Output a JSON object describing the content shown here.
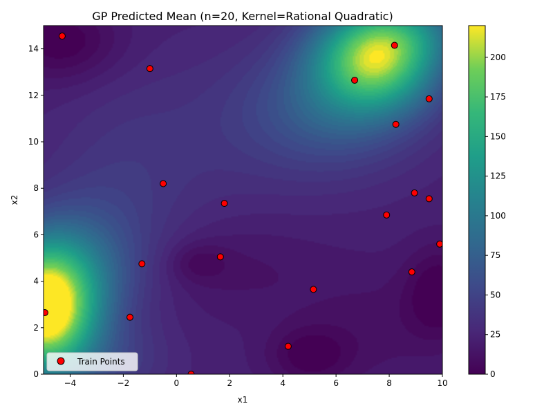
{
  "chart_data": {
    "type": "heatmap",
    "title": "GP Predicted Mean (n=20, Kernel=Rational Quadratic)",
    "xlabel": "x1",
    "ylabel": "x2",
    "xlim": [
      -5,
      10
    ],
    "ylim": [
      0,
      15
    ],
    "x_ticks": [
      -4,
      -2,
      0,
      2,
      4,
      6,
      8,
      10
    ],
    "y_ticks": [
      0,
      2,
      4,
      6,
      8,
      10,
      12,
      14
    ],
    "colorbar": {
      "colormap": "viridis",
      "range": [
        0,
        220
      ],
      "ticks": [
        0,
        25,
        50,
        75,
        100,
        125,
        150,
        175,
        200
      ]
    },
    "grid": false,
    "legend": {
      "placement": "lower-left",
      "entries": [
        "Train Points"
      ]
    },
    "series": [
      {
        "name": "Train Points",
        "marker_color": "#ff0000",
        "edge_color": "#000000",
        "points": [
          [
            -4.3,
            14.55
          ],
          [
            -1.0,
            13.15
          ],
          [
            8.2,
            14.15
          ],
          [
            6.7,
            12.65
          ],
          [
            9.5,
            11.85
          ],
          [
            8.25,
            10.75
          ],
          [
            -0.5,
            8.2
          ],
          [
            1.8,
            7.35
          ],
          [
            8.95,
            7.8
          ],
          [
            9.5,
            7.55
          ],
          [
            7.9,
            6.85
          ],
          [
            9.9,
            5.6
          ],
          [
            -1.3,
            4.75
          ],
          [
            1.65,
            5.05
          ],
          [
            8.85,
            4.4
          ],
          [
            5.15,
            3.65
          ],
          [
            -4.95,
            2.65
          ],
          [
            -1.75,
            2.45
          ],
          [
            4.2,
            1.2
          ],
          [
            0.55,
            0.0
          ]
        ]
      }
    ]
  }
}
